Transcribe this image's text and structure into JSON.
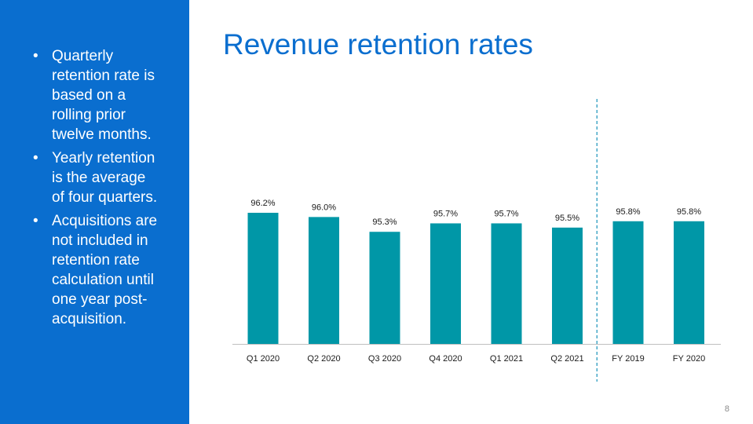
{
  "slide": {
    "title": "Revenue retention rates",
    "page_number": "8",
    "bullets": [
      "Quarterly retention rate is based on a rolling prior twelve months.",
      "Yearly retention is the average of four quarters.",
      "Acquisitions are not included in retention rate calculation until one year post-acquisition."
    ],
    "bullet_glyph": "•"
  },
  "colors": {
    "sidebar": "#0a6ecf",
    "bar": "#0097a7",
    "divider": "#2a9bbf"
  },
  "chart_data": {
    "type": "bar",
    "categories": [
      "Q1 2020",
      "Q2 2020",
      "Q3 2020",
      "Q4 2020",
      "Q1 2021",
      "Q2 2021",
      "FY 2019",
      "FY 2020"
    ],
    "values": [
      96.2,
      96.0,
      95.3,
      95.7,
      95.7,
      95.5,
      95.8,
      95.8
    ],
    "data_labels": [
      "96.2%",
      "96.0%",
      "95.3%",
      "95.7%",
      "95.7%",
      "95.5%",
      "95.8%",
      "95.8%"
    ],
    "title": "",
    "xlabel": "",
    "ylabel": "",
    "ylim": [
      90.0,
      96.5
    ],
    "grid": false,
    "separator_after_category": "Q2 2021"
  }
}
